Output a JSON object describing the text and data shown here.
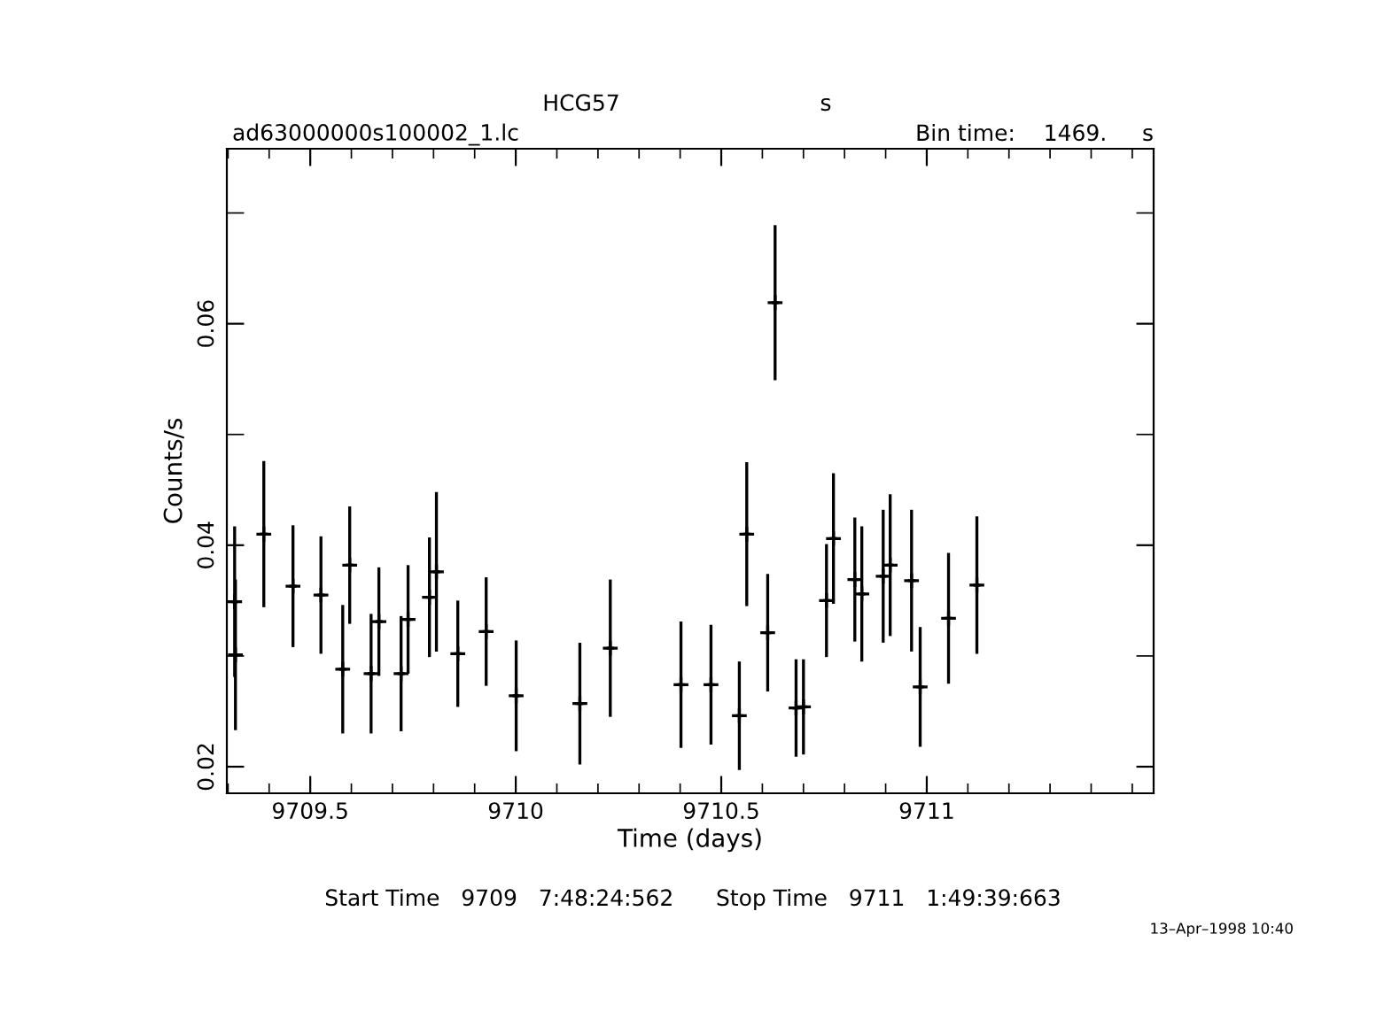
{
  "chart_data": {
    "type": "scatter",
    "title": "HCG57",
    "xlabel": "Time (days)",
    "ylabel": "Counts/s",
    "annotations": [
      "s",
      "ad63000000s100002_1.lc",
      "Bin time:    1469.     s",
      "Start Time   9709   7:48:24:562      Stop Time   9711   1:49:39:663",
      "13–Apr–1998 10:40"
    ],
    "x": [
      9709.316,
      9709.318,
      9709.387,
      9709.458,
      9709.526,
      9709.579,
      9709.596,
      9709.648,
      9709.667,
      9709.721,
      9709.738,
      9709.79,
      9709.807,
      9709.859,
      9709.928,
      9710.001,
      9710.156,
      9710.23,
      9710.402,
      9710.475,
      9710.544,
      9710.562,
      9710.613,
      9710.631,
      9710.682,
      9710.7,
      9710.756,
      9710.773,
      9710.825,
      9710.842,
      9710.894,
      9710.911,
      9710.963,
      9710.984,
      9711.053,
      9711.122
    ],
    "values": [
      0.0349,
      0.0301,
      0.041,
      0.0363,
      0.0355,
      0.0288,
      0.0382,
      0.0284,
      0.0331,
      0.0284,
      0.0333,
      0.0353,
      0.0376,
      0.0302,
      0.0322,
      0.0264,
      0.0257,
      0.0307,
      0.0274,
      0.0274,
      0.0246,
      0.041,
      0.0321,
      0.0619,
      0.0253,
      0.0254,
      0.035,
      0.0406,
      0.0369,
      0.0356,
      0.0372,
      0.0382,
      0.0368,
      0.0272,
      0.0334,
      0.0364
    ],
    "errors": [
      0.0068,
      0.0068,
      0.0066,
      0.0055,
      0.0053,
      0.0058,
      0.0053,
      0.0054,
      0.0049,
      0.0052,
      0.0049,
      0.0054,
      0.0072,
      0.0048,
      0.0049,
      0.005,
      0.0055,
      0.0062,
      0.0057,
      0.0054,
      0.0049,
      0.0065,
      0.0053,
      0.007,
      0.0044,
      0.0043,
      0.0051,
      0.0059,
      0.0056,
      0.0061,
      0.006,
      0.0064,
      0.0064,
      0.0054,
      0.0059,
      0.0062
    ],
    "xerrors": [
      0.0085,
      0.0085,
      0.0085,
      0.0085,
      0.0085,
      0.0085,
      0.0085,
      0.0085,
      0.0085,
      0.0085,
      0.0085,
      0.0085,
      0.0085,
      0.0085,
      0.0085,
      0.0085,
      0.0085,
      0.0085,
      0.0085,
      0.0085,
      0.0085,
      0.0085,
      0.0085,
      0.0085,
      0.0085,
      0.0085,
      0.0085,
      0.0085,
      0.0085,
      0.0085,
      0.0085,
      0.0085,
      0.0085,
      0.0085,
      0.0085,
      0.0085
    ],
    "color": "#000000",
    "marker": "cross",
    "grid": false,
    "legend": false,
    "xlim": [
      9709.297,
      9711.552
    ],
    "ylim": [
      0.0176,
      0.0758
    ],
    "xticks": [
      {
        "value": 9709.3,
        "label": null
      },
      {
        "value": 9709.4,
        "label": null
      },
      9709.5,
      {
        "value": 9709.6,
        "label": null
      },
      {
        "value": 9709.7,
        "label": null
      },
      {
        "value": 9709.8,
        "label": null
      },
      {
        "value": 9709.9,
        "label": null
      },
      9710,
      {
        "value": 9710.1,
        "label": null
      },
      {
        "value": 9710.2,
        "label": null
      },
      {
        "value": 9710.3,
        "label": null
      },
      {
        "value": 9710.4,
        "label": null
      },
      9710.5,
      {
        "value": 9710.6,
        "label": null
      },
      {
        "value": 9710.7,
        "label": null
      },
      {
        "value": 9710.8,
        "label": null
      },
      {
        "value": 9710.9,
        "label": null
      },
      9711,
      {
        "value": 9711.1,
        "label": null
      },
      {
        "value": 9711.2,
        "label": null
      },
      {
        "value": 9711.3,
        "label": null
      },
      {
        "value": 9711.4,
        "label": null
      },
      {
        "value": 9711.5,
        "label": null
      }
    ],
    "yticks": [
      0.02,
      {
        "value": 0.03,
        "label": null
      },
      0.04,
      {
        "value": 0.05,
        "label": null
      },
      0.06,
      {
        "value": 0.07,
        "label": null
      }
    ]
  }
}
